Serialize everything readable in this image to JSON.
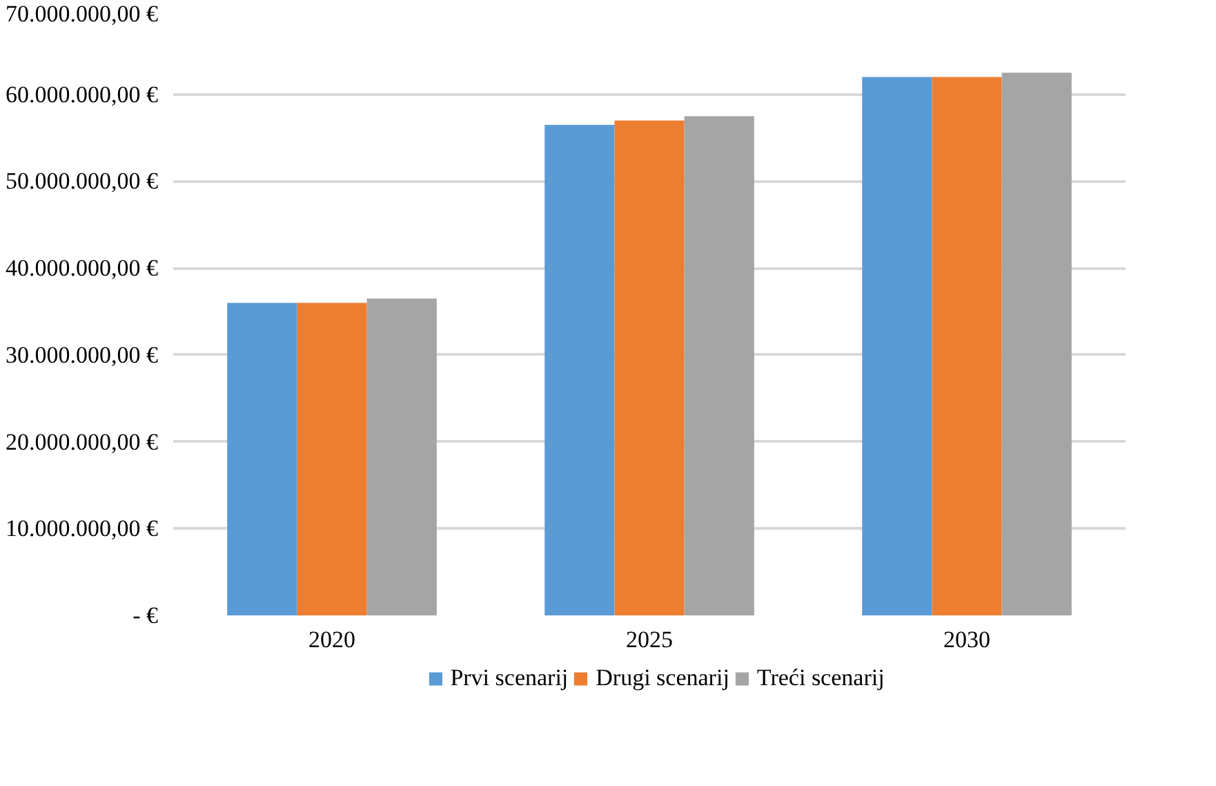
{
  "chart_data": {
    "type": "bar",
    "categories": [
      "2020",
      "2025",
      "2030"
    ],
    "series": [
      {
        "name": "Prvi scenarij",
        "color": "#5b9bd5",
        "values": [
          36000000,
          56500000,
          62000000
        ]
      },
      {
        "name": "Drugi scenarij",
        "color": "#ed7d31",
        "values": [
          36000000,
          57000000,
          62000000
        ]
      },
      {
        "name": "Treći scenarij",
        "color": "#a5a5a5",
        "values": [
          36500000,
          57500000,
          62500000
        ]
      }
    ],
    "ylim": [
      0,
      70000000
    ],
    "yticks": [
      {
        "value": 0,
        "label": "- €"
      },
      {
        "value": 10000000,
        "label": "10.000.000,00 €"
      },
      {
        "value": 20000000,
        "label": "20.000.000,00 €"
      },
      {
        "value": 30000000,
        "label": "30.000.000,00 €"
      },
      {
        "value": 40000000,
        "label": "40.000.000,00 €"
      },
      {
        "value": 50000000,
        "label": "50.000.000,00 €"
      },
      {
        "value": 60000000,
        "label": "60.000.000,00 €"
      },
      {
        "value": 70000000,
        "label": "70.000.000,00 €"
      }
    ],
    "grid": "y",
    "legend": "bottom"
  }
}
